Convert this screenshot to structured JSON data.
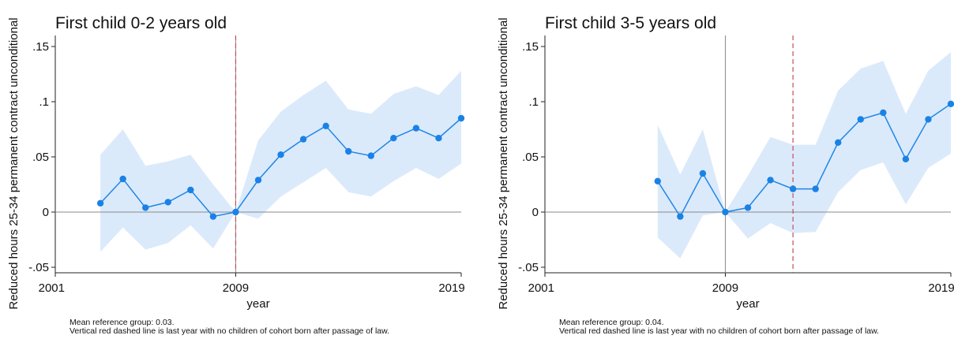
{
  "chart_data": [
    {
      "type": "line",
      "title": "First child 0-2 years old",
      "xlabel": "year",
      "ylabel": "Reduced hours 25-34 permanent contract unconditional",
      "xlim": [
        2001,
        2019
      ],
      "ylim": [
        -0.055,
        0.16
      ],
      "xticks": [
        2001,
        2009,
        2019
      ],
      "xtick_labels": [
        "2001",
        "2009",
        "2019"
      ],
      "yticks": [
        -0.05,
        0,
        0.05,
        0.1,
        0.15
      ],
      "ytick_labels": [
        "-.05",
        "0",
        ".05",
        ".1",
        ".15"
      ],
      "grid": false,
      "reference_line_y": 0,
      "base_year_line": 2009,
      "dashed_red_line": 2009,
      "x": [
        2003,
        2004,
        2005,
        2006,
        2007,
        2008,
        2009,
        2010,
        2011,
        2012,
        2013,
        2014,
        2015,
        2016,
        2017,
        2018,
        2019
      ],
      "series": [
        {
          "values": [
            0.008,
            0.03,
            0.004,
            0.009,
            0.02,
            -0.004,
            0,
            0.029,
            0.052,
            0.066,
            0.078,
            0.055,
            0.051,
            0.067,
            0.076,
            0.067,
            0.085
          ],
          "ci_lower": [
            -0.036,
            -0.014,
            -0.034,
            -0.028,
            -0.012,
            -0.033,
            0,
            -0.006,
            0.014,
            0.027,
            0.04,
            0.018,
            0.014,
            0.028,
            0.04,
            0.03,
            0.044
          ],
          "ci_upper": [
            0.052,
            0.075,
            0.042,
            0.046,
            0.052,
            0.025,
            0,
            0.065,
            0.091,
            0.106,
            0.119,
            0.093,
            0.089,
            0.107,
            0.114,
            0.106,
            0.128
          ]
        }
      ],
      "note_lines": [
        "Mean reference group: 0.03.",
        "Vertical red dashed line is last year with no children of cohort born after passage of law."
      ]
    },
    {
      "type": "line",
      "title": "First child 3-5 years old",
      "xlabel": "year",
      "ylabel": "Reduced hours 25-34 permanent contract unconditional",
      "xlim": [
        2001,
        2019
      ],
      "ylim": [
        -0.055,
        0.16
      ],
      "xticks": [
        2001,
        2009,
        2019
      ],
      "xtick_labels": [
        "2001",
        "2009",
        "2019"
      ],
      "yticks": [
        -0.05,
        0,
        0.05,
        0.1,
        0.15
      ],
      "ytick_labels": [
        "-.05",
        "0",
        ".05",
        ".1",
        ".15"
      ],
      "grid": false,
      "reference_line_y": 0,
      "base_year_line": 2009,
      "dashed_red_line": 2012,
      "x": [
        2006,
        2007,
        2008,
        2009,
        2010,
        2011,
        2012,
        2013,
        2014,
        2015,
        2016,
        2017,
        2018,
        2019
      ],
      "series": [
        {
          "values": [
            0.028,
            -0.004,
            0.035,
            0,
            0.004,
            0.029,
            0.021,
            0.021,
            0.063,
            0.084,
            0.09,
            0.048,
            0.084,
            0.098
          ],
          "ci_lower": [
            -0.023,
            -0.042,
            -0.003,
            0,
            -0.024,
            -0.01,
            -0.019,
            -0.018,
            0.018,
            0.038,
            0.045,
            0.007,
            0.04,
            0.053
          ],
          "ci_upper": [
            0.079,
            0.034,
            0.075,
            0,
            0.033,
            0.068,
            0.061,
            0.061,
            0.11,
            0.13,
            0.137,
            0.089,
            0.128,
            0.145
          ]
        }
      ],
      "note_lines": [
        "Mean reference group: 0.04.",
        "Vertical red dashed line is last year with no children of cohort born after passage of law."
      ]
    }
  ]
}
